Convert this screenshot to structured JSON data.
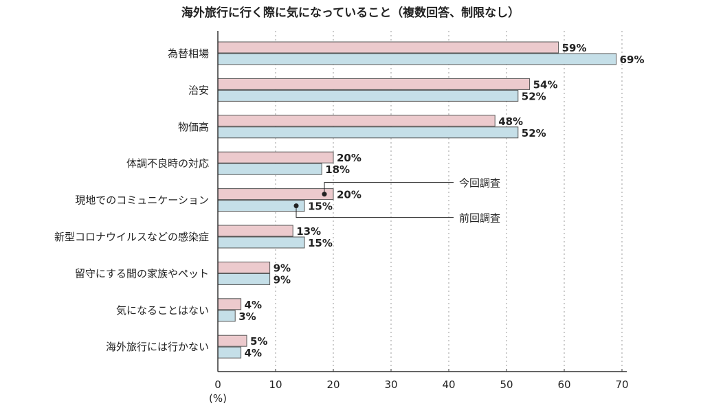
{
  "chart_data": {
    "type": "bar",
    "orientation": "horizontal",
    "title": "海外旅行に行く際に気になっていること（複数回答、制限なし）",
    "categories": [
      "為替相場",
      "治安",
      "物価高",
      "体調不良時の対応",
      "現地でのコミュニケーション",
      "新型コロナウイルスなどの感染症",
      "留守にする間の家族やペット",
      "気になることはない",
      "海外旅行には行かない"
    ],
    "series": [
      {
        "name": "今回調査",
        "values": [
          59,
          54,
          48,
          20,
          20,
          13,
          9,
          4,
          5
        ],
        "color": "#eccacd"
      },
      {
        "name": "前回調査",
        "values": [
          69,
          52,
          52,
          18,
          15,
          15,
          9,
          3,
          4
        ],
        "color": "#c5dfe8"
      }
    ],
    "value_suffix": "%",
    "xlabel": "(%)",
    "xlim": [
      0,
      70
    ],
    "xticks": [
      0,
      10,
      20,
      30,
      40,
      50,
      60,
      70
    ],
    "grid": "vertical dotted",
    "legend": "callouts on 現地でのコミュニケーション row"
  }
}
